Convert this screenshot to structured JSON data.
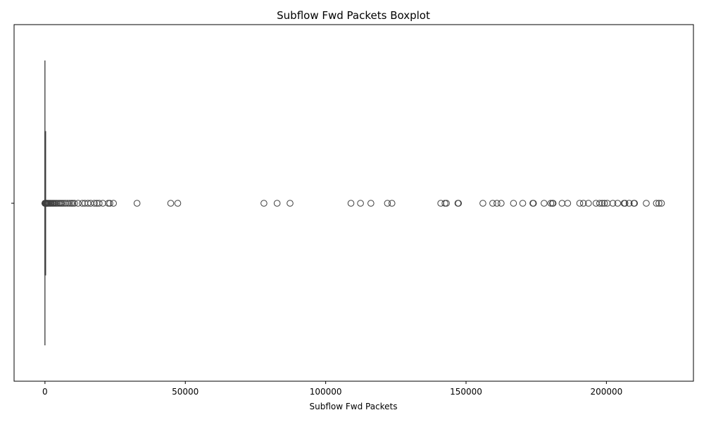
{
  "chart_data": {
    "type": "boxplot",
    "orientation": "horizontal",
    "title": "Subflow Fwd Packets Boxplot",
    "xlabel": "Subflow Fwd Packets",
    "ylabel": "",
    "xlim": [
      -11000,
      231000
    ],
    "xticks": [
      0,
      50000,
      100000,
      150000,
      200000
    ],
    "xtick_labels": [
      "0",
      "50000",
      "100000",
      "150000",
      "200000"
    ],
    "grid": false,
    "box": {
      "q1": 1,
      "median": 2,
      "q3": 5,
      "whisker_low": 1,
      "whisker_high": 10
    },
    "outliers": [
      12,
      15,
      20,
      30,
      50,
      80,
      120,
      180,
      250,
      350,
      500,
      700,
      900,
      1100,
      1400,
      1700,
      2000,
      2300,
      2700,
      3000,
      3400,
      3800,
      4200,
      4700,
      5200,
      5700,
      6200,
      6800,
      7400,
      8100,
      8800,
      9400,
      9900,
      10500,
      11800,
      13300,
      14200,
      15300,
      16300,
      17600,
      18500,
      19300,
      20600,
      22600,
      23100,
      24400,
      32800,
      44800,
      47300,
      78000,
      82700,
      87300,
      109000,
      112400,
      116100,
      122000,
      123600,
      141000,
      142500,
      143000,
      147100,
      147300,
      156000,
      159500,
      161000,
      162500,
      166900,
      170200,
      173800,
      174000,
      177800,
      180200,
      180800,
      181000,
      184200,
      186200,
      190500,
      191800,
      193600,
      196300,
      197600,
      198500,
      199300,
      200300,
      202300,
      204000,
      206300,
      206600,
      208100,
      209800,
      210000,
      214200,
      217800,
      218700,
      219600
    ],
    "colors": {
      "box_line": "#3f3f3f",
      "outlier_edge": "#3f3f3f"
    }
  }
}
